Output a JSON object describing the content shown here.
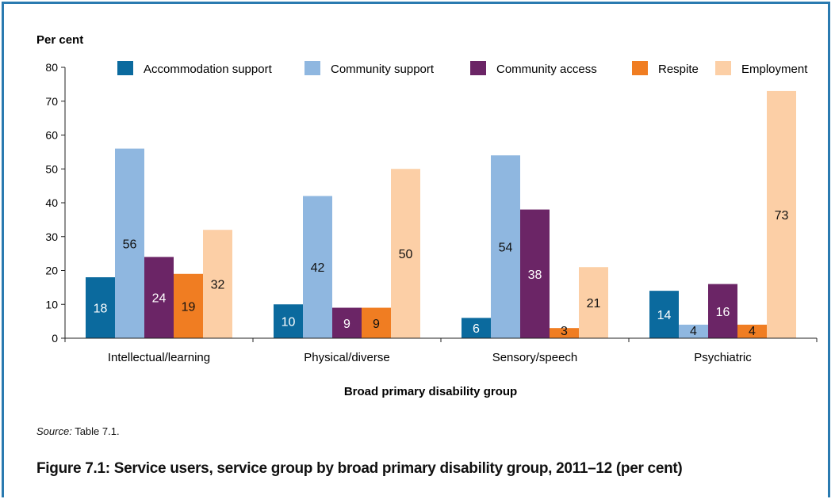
{
  "chart_data": {
    "type": "bar",
    "ylabel": "Per cent",
    "xlabel": "Broad primary disability group",
    "ylim": [
      0,
      80
    ],
    "yticks": [
      0,
      10,
      20,
      30,
      40,
      50,
      60,
      70,
      80
    ],
    "categories": [
      "Intellectual/learning",
      "Physical/diverse",
      "Sensory/speech",
      "Psychiatric"
    ],
    "series": [
      {
        "name": "Accommodation support",
        "color": "#0b6a9e",
        "values": [
          18,
          10,
          6,
          14
        ],
        "labels": [
          "18",
          "10",
          "6",
          "14"
        ]
      },
      {
        "name": "Community support",
        "color": "#8fb7e0",
        "values": [
          56,
          42,
          54,
          4
        ],
        "labels": [
          "56",
          "42",
          "54",
          "4"
        ]
      },
      {
        "name": "Community access",
        "color": "#6b2566",
        "values": [
          24,
          9,
          38,
          16
        ],
        "labels": [
          "24",
          "9",
          "38",
          "16"
        ]
      },
      {
        "name": "Respite",
        "color": "#f07d22",
        "values": [
          19,
          9,
          3,
          4
        ],
        "labels": [
          "19",
          "9",
          "3",
          "4"
        ]
      },
      {
        "name": "Employment",
        "color": "#fccfa6",
        "values": [
          32,
          50,
          21,
          73
        ],
        "labels": [
          "32",
          "50",
          "21",
          "73"
        ]
      }
    ],
    "legend_position": "top",
    "grid": false
  },
  "source": {
    "prefix": "Source:",
    "text": " Table 7.1."
  },
  "figure_title": "Figure 7.1: Service users, service group by broad primary disability group, 2011–12 (per cent)"
}
